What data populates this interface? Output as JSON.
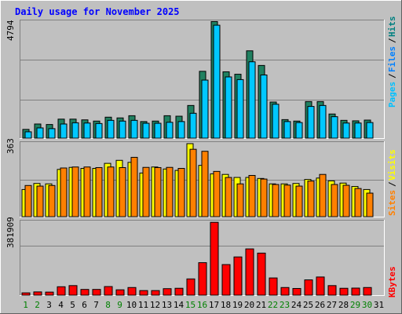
{
  "chart_data": [
    {
      "type": "bar",
      "title": "Daily usage for November 2025",
      "ylabel_top": "4794",
      "ylim": [
        0,
        4794
      ],
      "categories": [
        "1",
        "2",
        "3",
        "4",
        "5",
        "6",
        "7",
        "8",
        "9",
        "10",
        "11",
        "12",
        "13",
        "14",
        "15",
        "16",
        "17",
        "18",
        "19",
        "20",
        "21",
        "22",
        "23",
        "24",
        "25",
        "26",
        "27",
        "28",
        "29",
        "30",
        "31"
      ],
      "weekend_days": [
        "1",
        "2",
        "8",
        "9",
        "15",
        "16",
        "22",
        "23",
        "29",
        "30"
      ],
      "legend": [
        "Pages",
        "Files",
        "Hits"
      ],
      "series": [
        {
          "name": "Hits",
          "color": "#00805c",
          "values": [
            360,
            580,
            560,
            780,
            780,
            750,
            700,
            860,
            830,
            920,
            680,
            700,
            920,
            900,
            1340,
            2740,
            4780,
            2720,
            2620,
            3580,
            2980,
            1480,
            760,
            700,
            1500,
            1500,
            990,
            730,
            710,
            740,
            null
          ]
        },
        {
          "name": "Files",
          "color": "#00e0ff",
          "values": [
            260,
            420,
            390,
            580,
            630,
            620,
            600,
            730,
            700,
            730,
            610,
            610,
            650,
            680,
            1020,
            2380,
            4630,
            2510,
            2400,
            3130,
            2590,
            1390,
            680,
            640,
            1300,
            1340,
            880,
            620,
            620,
            640,
            null
          ]
        },
        {
          "name": "Pages",
          "color": "#0000ff",
          "values": [
            null,
            null,
            null,
            null,
            null,
            null,
            null,
            null,
            null,
            null,
            null,
            null,
            null,
            null,
            null,
            null,
            null,
            null,
            null,
            null,
            null,
            null,
            null,
            null,
            null,
            null,
            null,
            null,
            null,
            null,
            null
          ]
        }
      ]
    },
    {
      "type": "bar",
      "ylabel_top": "363",
      "ylim": [
        0,
        363
      ],
      "categories": [
        "1",
        "2",
        "3",
        "4",
        "5",
        "6",
        "7",
        "8",
        "9",
        "10",
        "11",
        "12",
        "13",
        "14",
        "15",
        "16",
        "17",
        "18",
        "19",
        "20",
        "21",
        "22",
        "23",
        "24",
        "25",
        "26",
        "27",
        "28",
        "29",
        "30",
        "31"
      ],
      "legend": [
        "Sites",
        "Visits"
      ],
      "series": [
        {
          "name": "Visits",
          "color": "#ffff00",
          "values": [
            135,
            165,
            163,
            235,
            245,
            240,
            240,
            265,
            280,
            270,
            217,
            247,
            237,
            230,
            363,
            255,
            213,
            210,
            195,
            195,
            190,
            163,
            163,
            165,
            185,
            192,
            178,
            167,
            150,
            135,
            null
          ]
        },
        {
          "name": "Sites",
          "color": "#ff8000",
          "values": [
            155,
            152,
            155,
            242,
            247,
            247,
            244,
            247,
            244,
            295,
            245,
            244,
            245,
            240,
            335,
            325,
            225,
            195,
            163,
            205,
            187,
            160,
            157,
            152,
            177,
            210,
            160,
            156,
            140,
            117,
            null
          ]
        }
      ]
    },
    {
      "type": "bar",
      "ylabel_top": "381909",
      "ylim": [
        0,
        381909
      ],
      "categories": [
        "1",
        "2",
        "3",
        "4",
        "5",
        "6",
        "7",
        "8",
        "9",
        "10",
        "11",
        "12",
        "13",
        "14",
        "15",
        "16",
        "17",
        "18",
        "19",
        "20",
        "21",
        "22",
        "23",
        "24",
        "25",
        "26",
        "27",
        "28",
        "29",
        "30",
        "31"
      ],
      "legend": [
        "KBytes"
      ],
      "series": [
        {
          "name": "KBytes",
          "color": "#ff0000",
          "values": [
            12000,
            17000,
            16000,
            44000,
            50000,
            30000,
            30000,
            45000,
            28000,
            40000,
            24000,
            24000,
            34000,
            36000,
            85000,
            170000,
            381000,
            160000,
            200000,
            242000,
            220000,
            90000,
            40000,
            35000,
            80000,
            95000,
            50000,
            36000,
            37000,
            40000,
            null
          ]
        }
      ]
    }
  ],
  "colors": {
    "background": "#c0c0c0",
    "panel": "#c0c0c0",
    "title": "#0000ff",
    "weekday_label": "#000000",
    "weekend_label": "#008000",
    "pages": "#00c0ff",
    "files": "#0080ff",
    "hits": "#008080",
    "sites": "#ff8000",
    "visits": "#ffff00",
    "kbytes": "#ff0000"
  }
}
